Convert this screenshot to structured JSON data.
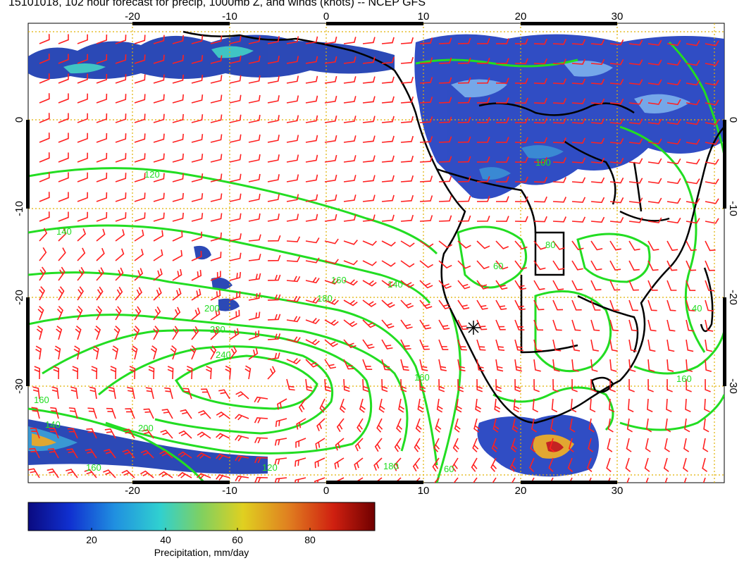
{
  "title": "15101018, 102 hour forecast for precip, 1000mb Z, and winds (knots) -- NCEP GFS",
  "map": {
    "lon_labels": [
      "-20",
      "-10",
      "0",
      "10",
      "20",
      "30"
    ],
    "lat_labels": [
      "0",
      "-10",
      "-20",
      "-30"
    ],
    "contour_labels": [
      "120",
      "140",
      "160",
      "180",
      "200",
      "220",
      "240",
      "160",
      "140",
      "120",
      "200",
      "180",
      "160",
      "140",
      "160",
      "40",
      "60",
      "80",
      "100",
      "60",
      "160"
    ],
    "colors": {
      "contour": "#22dd22",
      "barb": "#ff2020",
      "coast": "#000000",
      "grid": "#e0b000",
      "precip_low": "#1a2a9a",
      "precip_high": "#c01010"
    }
  },
  "colorbar": {
    "ticks": [
      "20",
      "40",
      "60",
      "80"
    ],
    "label": "Precipitation, mm/day",
    "stops": [
      "#0a0a80",
      "#1030d0",
      "#2090e0",
      "#30d0d0",
      "#80d060",
      "#e0d020",
      "#e08020",
      "#d02010",
      "#700000"
    ]
  }
}
